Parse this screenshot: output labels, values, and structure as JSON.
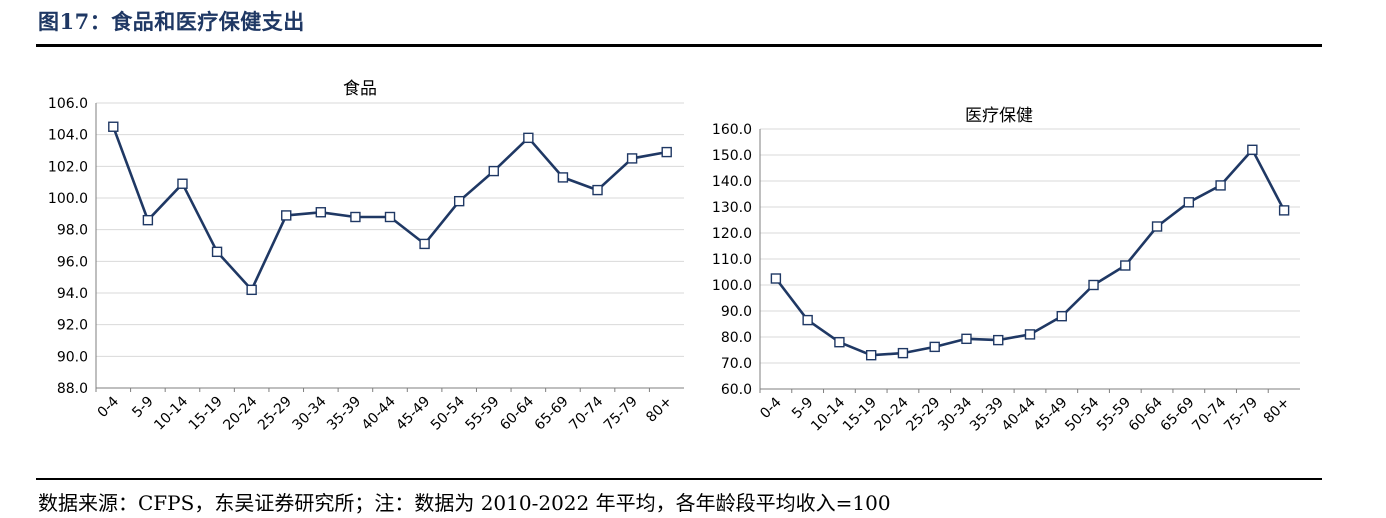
{
  "figure": {
    "title": "图17：食品和医疗保健支出",
    "source": "数据来源：CFPS，东吴证券研究所；注：数据为 2010-2022 年平均，各年龄段平均收入=100"
  },
  "colors": {
    "line": "#1f3864",
    "grid": "#d9d9d9",
    "title": "#1f3864"
  },
  "chart_data": [
    {
      "type": "line",
      "title": "食品",
      "categories": [
        "0-4",
        "5-9",
        "10-14",
        "15-19",
        "20-24",
        "25-29",
        "30-34",
        "35-39",
        "40-44",
        "45-49",
        "50-54",
        "55-59",
        "60-64",
        "65-69",
        "70-74",
        "75-79",
        "80+"
      ],
      "series": [
        {
          "values": [
            104.5,
            98.6,
            100.9,
            96.6,
            94.2,
            98.9,
            99.1,
            98.8,
            98.8,
            97.1,
            99.8,
            101.7,
            103.8,
            101.3,
            100.5,
            102.5,
            102.9
          ]
        }
      ],
      "ylim": [
        88,
        106
      ],
      "yticks": [
        "88.0",
        "90.0",
        "92.0",
        "94.0",
        "96.0",
        "98.0",
        "100.0",
        "102.0",
        "104.0",
        "106.0"
      ],
      "grid": true,
      "marker": "square"
    },
    {
      "type": "line",
      "title": "医疗保健",
      "categories": [
        "0-4",
        "5-9",
        "10-14",
        "15-19",
        "20-24",
        "25-29",
        "30-34",
        "35-39",
        "40-44",
        "45-49",
        "50-54",
        "55-59",
        "60-64",
        "65-69",
        "70-74",
        "75-79",
        "80+"
      ],
      "series": [
        {
          "values": [
            102.5,
            86.5,
            78.0,
            73.0,
            73.8,
            76.2,
            79.3,
            78.8,
            81.0,
            88.0,
            100.0,
            107.5,
            122.5,
            131.8,
            138.3,
            152.0,
            128.7
          ]
        }
      ],
      "ylim": [
        60,
        160
      ],
      "yticks": [
        "60.0",
        "70.0",
        "80.0",
        "90.0",
        "100.0",
        "110.0",
        "120.0",
        "130.0",
        "140.0",
        "150.0",
        "160.0"
      ],
      "grid": true,
      "marker": "square"
    }
  ]
}
